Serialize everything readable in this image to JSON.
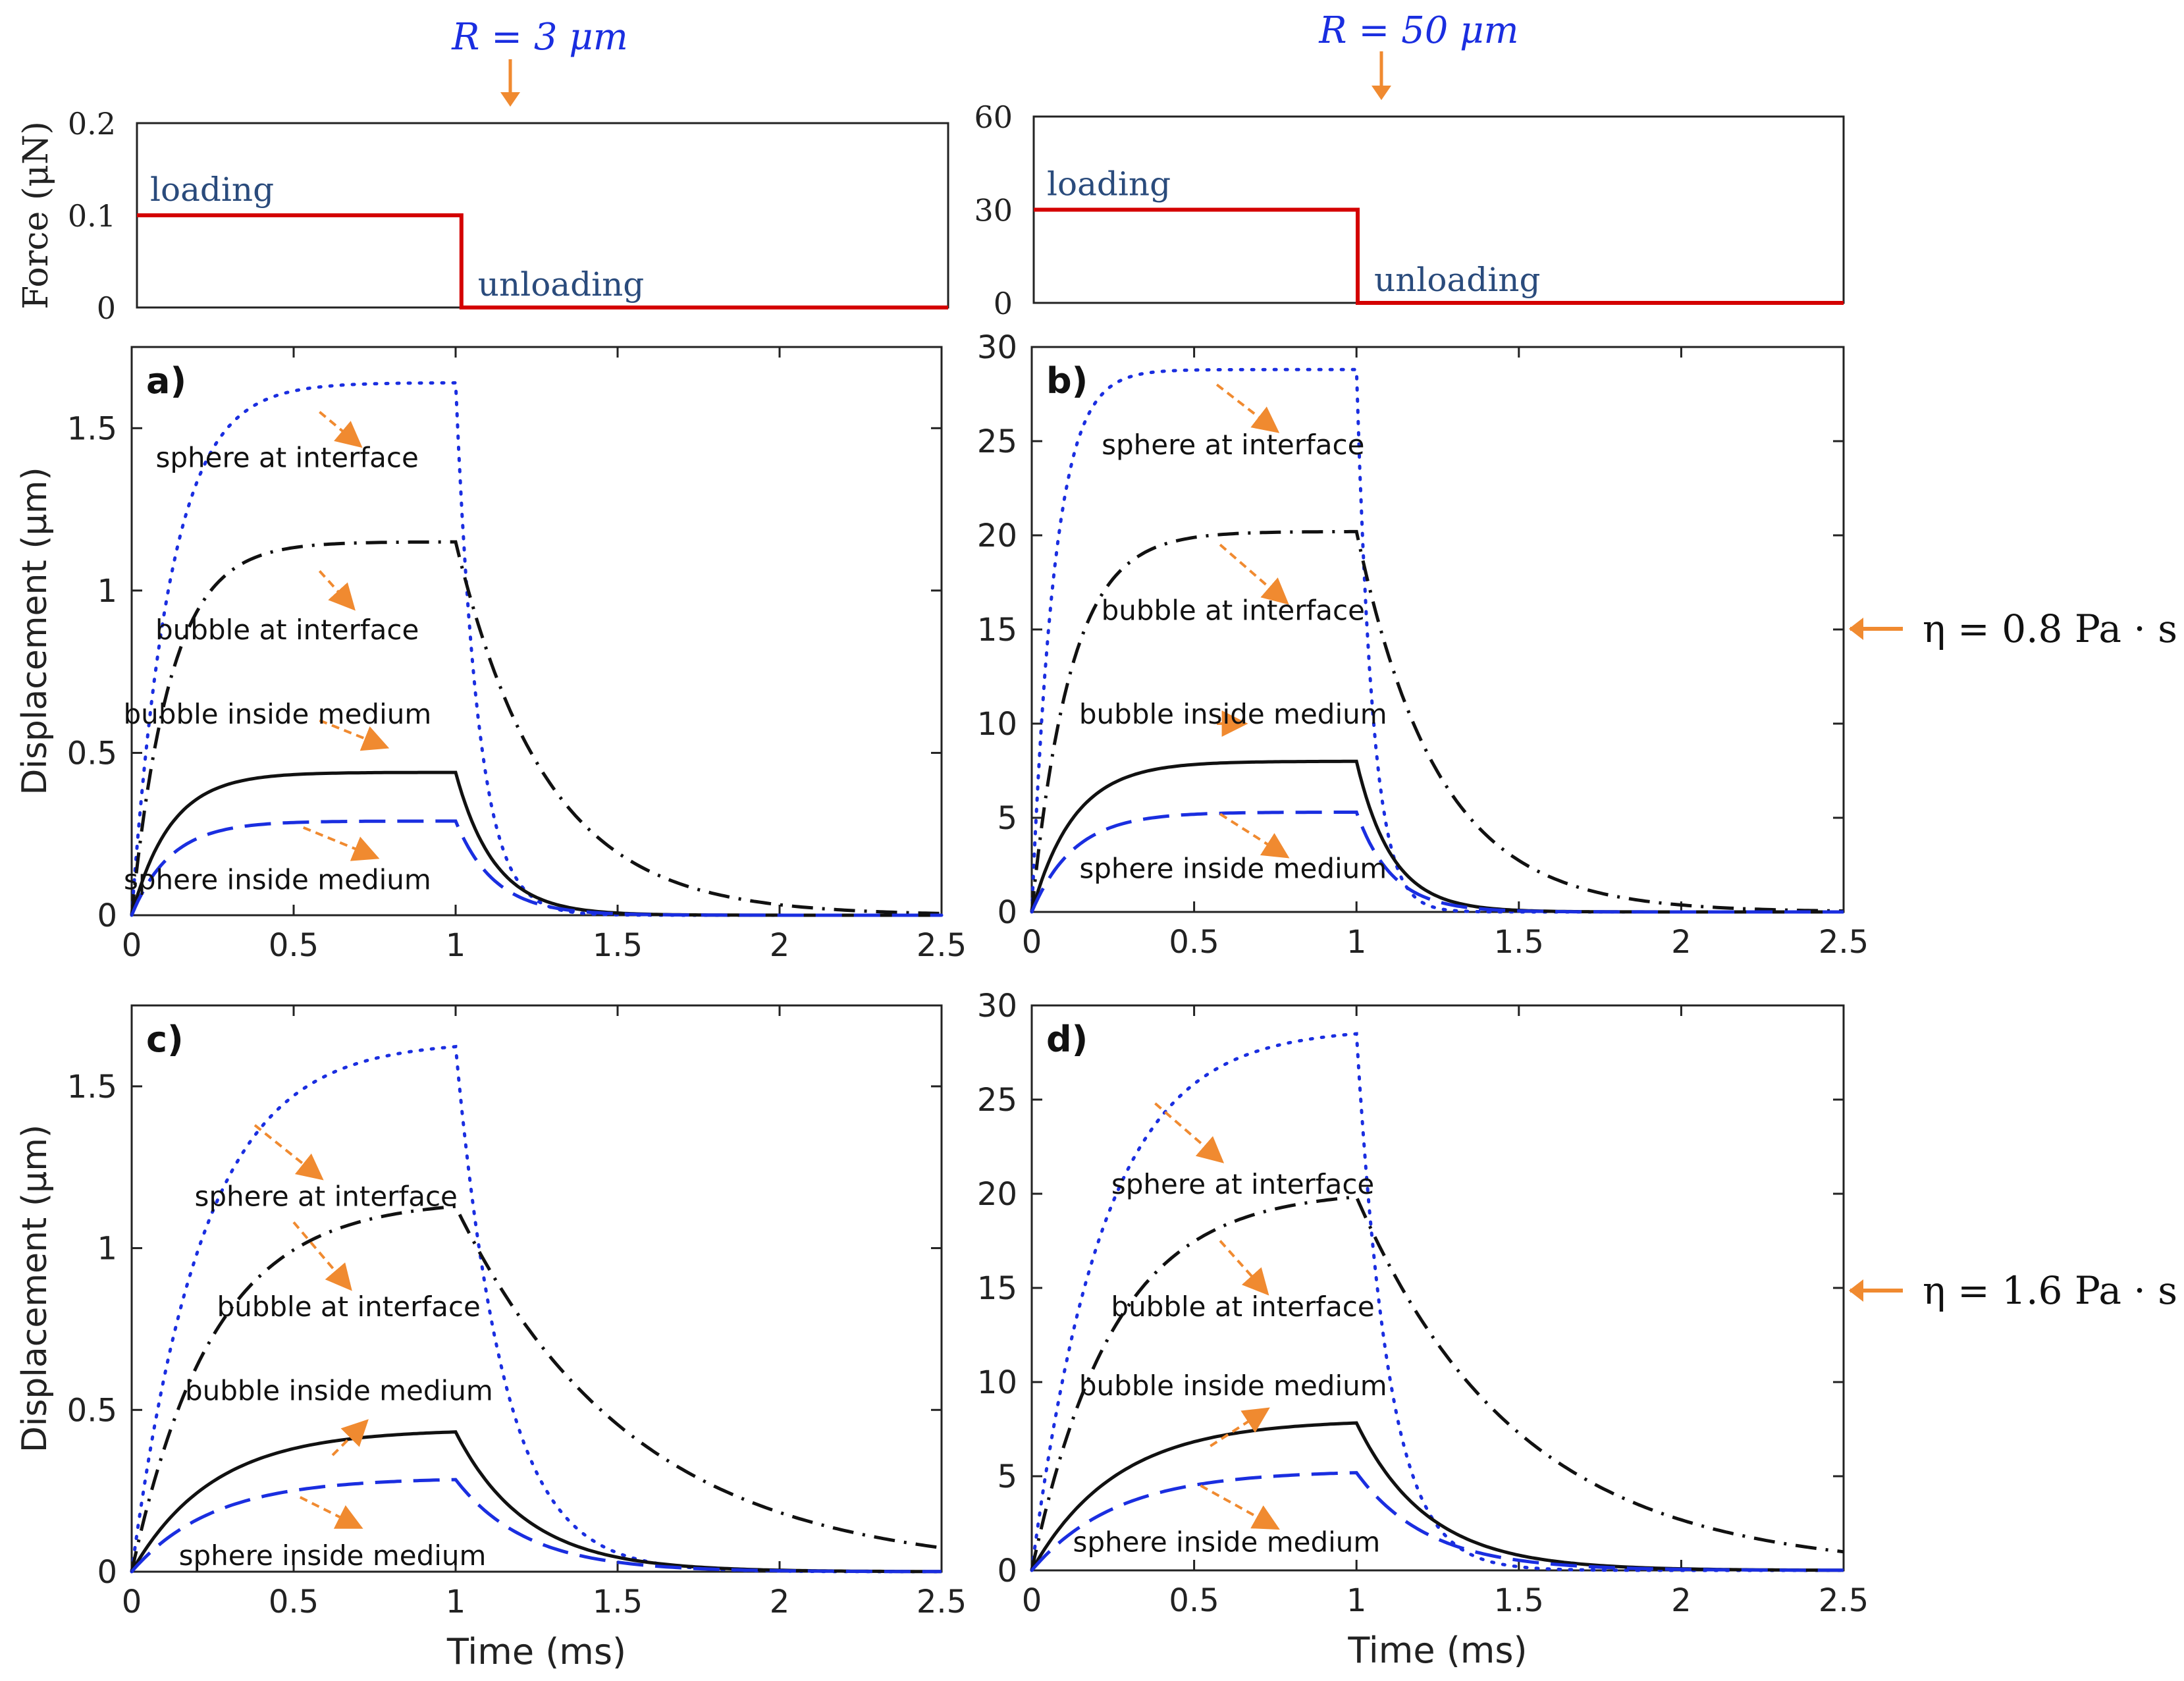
{
  "colors": {
    "axis": "#222222",
    "force": "#d40000",
    "annotation_text": "#2a4b7c",
    "param_text": "#1a2ee0",
    "arrow": "#f08a30",
    "sphere_interface": "#1a2ee0",
    "bubble_interface": "#111111",
    "bubble_inside": "#111111",
    "sphere_inside": "#1a2ee0"
  },
  "header": {
    "left_param": "R = 3 μm",
    "right_param": "R = 50 μm"
  },
  "side_labels": {
    "top": "η = 0.8 Pa · s",
    "bottom": "η = 1.6 Pa · s"
  },
  "chart_data": [
    {
      "id": "force_left",
      "type": "line",
      "ylabel": "Force (μN)",
      "ylim": [
        0,
        0.2
      ],
      "xlim": [
        0,
        2.5
      ],
      "yticks": [
        "0",
        "0.1",
        "0.2"
      ],
      "series": [
        {
          "name": "force",
          "x": [
            0,
            1,
            1,
            2.5
          ],
          "y": [
            0.1,
            0.1,
            0,
            0
          ]
        }
      ],
      "annotations": [
        "loading",
        "unloading"
      ]
    },
    {
      "id": "force_right",
      "type": "line",
      "ylim": [
        0,
        60
      ],
      "xlim": [
        0,
        2.5
      ],
      "yticks": [
        "0",
        "30",
        "60"
      ],
      "series": [
        {
          "name": "force",
          "x": [
            0,
            1,
            1,
            2.5
          ],
          "y": [
            30,
            30,
            0,
            0
          ]
        }
      ],
      "annotations": [
        "loading",
        "unloading"
      ]
    },
    {
      "id": "a",
      "panel_label": "a)",
      "type": "line",
      "ylabel": "Displacement (μm)",
      "xlabel": "",
      "xlim": [
        0,
        2.5
      ],
      "ylim": [
        0,
        1.75
      ],
      "xticks": [
        "0",
        "0.5",
        "1",
        "1.5",
        "2",
        "2.5"
      ],
      "yticks": [
        "0",
        "0.5",
        "1",
        "1.5"
      ],
      "series": [
        {
          "name": "sphere at interface",
          "style": "dotted",
          "plateau": 1.64,
          "tau_load": 0.12,
          "tau_unload": 0.07
        },
        {
          "name": "bubble at interface",
          "style": "dashdot",
          "plateau": 1.15,
          "tau_load": 0.12,
          "tau_unload": 0.28
        },
        {
          "name": "bubble inside medium",
          "style": "solid",
          "plateau": 0.44,
          "tau_load": 0.12,
          "tau_unload": 0.12
        },
        {
          "name": "sphere inside medium",
          "style": "dashed",
          "plateau": 0.29,
          "tau_load": 0.12,
          "tau_unload": 0.12
        }
      ],
      "labels": [
        "sphere at interface",
        "bubble at interface",
        "bubble inside medium",
        "sphere inside medium"
      ]
    },
    {
      "id": "b",
      "panel_label": "b)",
      "type": "line",
      "xlim": [
        0,
        2.5
      ],
      "ylim": [
        0,
        30
      ],
      "xticks": [
        "0",
        "0.5",
        "1",
        "1.5",
        "2",
        "2.5"
      ],
      "yticks": [
        "0",
        "5",
        "10",
        "15",
        "20",
        "25",
        "30"
      ],
      "series": [
        {
          "name": "sphere at interface",
          "style": "dotted",
          "plateau": 28.8,
          "tau_load": 0.07,
          "tau_unload": 0.05
        },
        {
          "name": "bubble at interface",
          "style": "dashdot",
          "plateau": 20.2,
          "tau_load": 0.12,
          "tau_unload": 0.25
        },
        {
          "name": "bubble inside medium",
          "style": "solid",
          "plateau": 8.0,
          "tau_load": 0.13,
          "tau_unload": 0.11
        },
        {
          "name": "sphere inside medium",
          "style": "dashed",
          "plateau": 5.3,
          "tau_load": 0.13,
          "tau_unload": 0.11
        }
      ],
      "labels": [
        "sphere at interface",
        "bubble at interface",
        "bubble inside medium",
        "sphere inside medium"
      ]
    },
    {
      "id": "c",
      "panel_label": "c)",
      "type": "line",
      "ylabel": "Displacement (μm)",
      "xlabel": "Time (ms)",
      "xlim": [
        0,
        2.5
      ],
      "ylim": [
        0,
        1.75
      ],
      "xticks": [
        "0",
        "0.5",
        "1",
        "1.5",
        "2",
        "2.5"
      ],
      "yticks": [
        "0",
        "0.5",
        "1",
        "1.5"
      ],
      "series": [
        {
          "name": "sphere at interface",
          "style": "dotted",
          "plateau": 1.64,
          "tau_load": 0.22,
          "tau_unload": 0.15
        },
        {
          "name": "bubble at interface",
          "style": "dashdot",
          "plateau": 1.15,
          "tau_load": 0.25,
          "tau_unload": 0.55
        },
        {
          "name": "bubble inside medium",
          "style": "solid",
          "plateau": 0.44,
          "tau_load": 0.25,
          "tau_unload": 0.22
        },
        {
          "name": "sphere inside medium",
          "style": "dashed",
          "plateau": 0.29,
          "tau_load": 0.25,
          "tau_unload": 0.22
        }
      ],
      "labels": [
        "sphere at interface",
        "bubble at interface",
        "bubble inside medium",
        "sphere inside medium"
      ]
    },
    {
      "id": "d",
      "panel_label": "d)",
      "type": "line",
      "xlabel": "Time (ms)",
      "xlim": [
        0,
        2.5
      ],
      "ylim": [
        0,
        30
      ],
      "xticks": [
        "0",
        "0.5",
        "1",
        "1.5",
        "2",
        "2.5"
      ],
      "yticks": [
        "0",
        "5",
        "10",
        "15",
        "20",
        "25",
        "30"
      ],
      "series": [
        {
          "name": "sphere at interface",
          "style": "dotted",
          "plateau": 28.8,
          "tau_load": 0.22,
          "tau_unload": 0.1
        },
        {
          "name": "bubble at interface",
          "style": "dashdot",
          "plateau": 20.2,
          "tau_load": 0.25,
          "tau_unload": 0.5
        },
        {
          "name": "bubble inside medium",
          "style": "solid",
          "plateau": 8.0,
          "tau_load": 0.26,
          "tau_unload": 0.22
        },
        {
          "name": "sphere inside medium",
          "style": "dashed",
          "plateau": 5.3,
          "tau_load": 0.26,
          "tau_unload": 0.22
        }
      ],
      "labels": [
        "sphere at interface",
        "bubble at interface",
        "bubble inside medium",
        "sphere inside medium"
      ]
    }
  ]
}
